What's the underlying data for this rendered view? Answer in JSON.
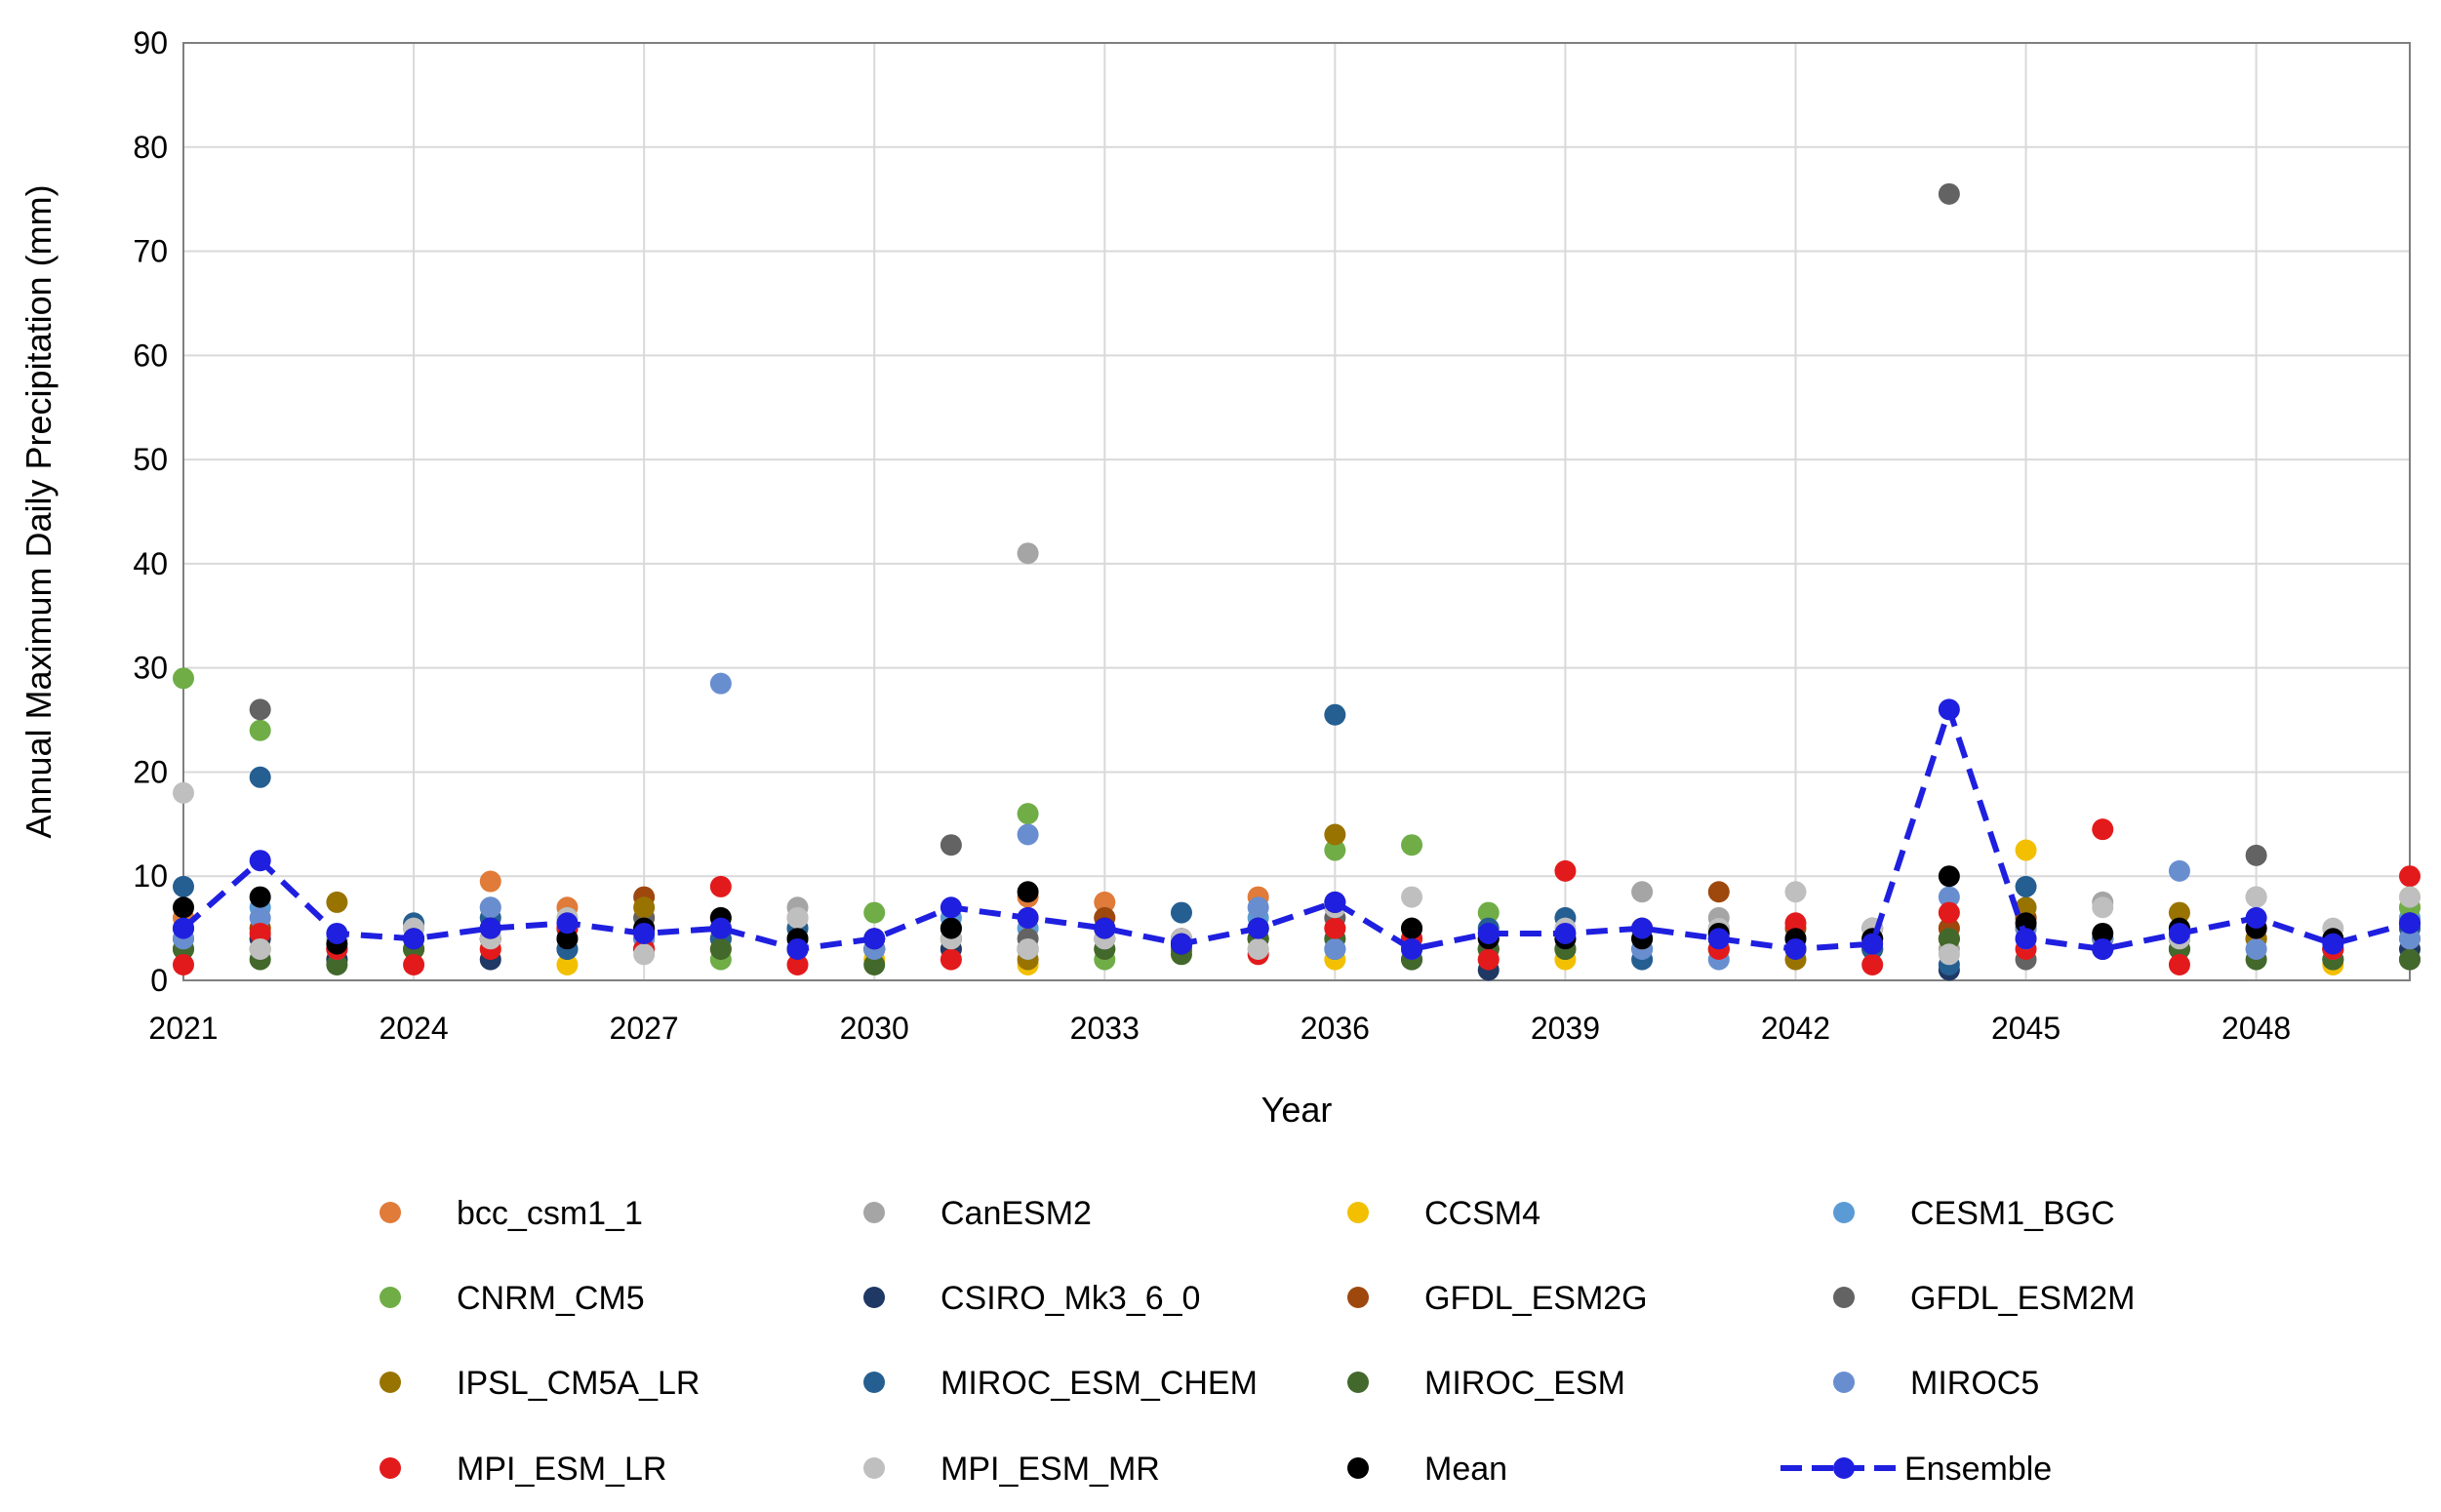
{
  "chart_data": {
    "type": "scatter",
    "title": "",
    "xlabel": "Year",
    "ylabel": "Annual Maximum Daily Precipitation (mm)",
    "xlim": [
      2021,
      2050
    ],
    "ylim": [
      0,
      90
    ],
    "x_ticks": [
      2021,
      2024,
      2027,
      2030,
      2033,
      2036,
      2039,
      2042,
      2045,
      2048
    ],
    "y_ticks": [
      0,
      10,
      20,
      30,
      40,
      50,
      60,
      70,
      80,
      90
    ],
    "grid": true,
    "legend_position": "bottom",
    "years": [
      2021,
      2022,
      2023,
      2024,
      2025,
      2026,
      2027,
      2028,
      2029,
      2030,
      2031,
      2032,
      2033,
      2034,
      2035,
      2036,
      2037,
      2038,
      2039,
      2040,
      2041,
      2042,
      2043,
      2044,
      2045,
      2046,
      2047,
      2048,
      2049,
      2050
    ],
    "series": [
      {
        "name": "bcc_csm1_1",
        "color": "#E07B39",
        "marker": "dot",
        "values": [
          6,
          4,
          3,
          3,
          9.5,
          7,
          6,
          3,
          6,
          3,
          5,
          8,
          7.5,
          3,
          8,
          5,
          4,
          3,
          4,
          5,
          4,
          3,
          4,
          4,
          5,
          3,
          4,
          5,
          3,
          7
        ]
      },
      {
        "name": "CanESM2",
        "color": "#A5A5A5",
        "marker": "dot",
        "values": [
          4,
          3,
          4,
          3,
          7,
          5,
          3,
          6,
          7,
          3,
          4,
          41,
          5,
          4,
          4,
          6,
          5,
          2,
          4,
          8.5,
          6,
          3,
          5,
          3,
          4,
          7.5,
          3,
          8,
          4,
          6
        ]
      },
      {
        "name": "CCSM4",
        "color": "#F2C000",
        "marker": "dot",
        "values": [
          3,
          5,
          3,
          3,
          3,
          1.5,
          5,
          3,
          3,
          2,
          4,
          1.5,
          5,
          4,
          3,
          2,
          3,
          4,
          2,
          4,
          3,
          3,
          4,
          4,
          12.5,
          4,
          3,
          4,
          1.5,
          8
        ]
      },
      {
        "name": "CESM1_BGC",
        "color": "#5B9BD5",
        "marker": "dot",
        "values": [
          5,
          7,
          3,
          5,
          5,
          5,
          4,
          4,
          3,
          4,
          6,
          5,
          6,
          3,
          6,
          4,
          3,
          3,
          3,
          4,
          3,
          4,
          5,
          4,
          5,
          4,
          4,
          5,
          3,
          6
        ]
      },
      {
        "name": "CNRM_CM5",
        "color": "#70AD47",
        "marker": "dot",
        "values": [
          29,
          24,
          2,
          3,
          4,
          6,
          3,
          2,
          5,
          6.5,
          3,
          16,
          2,
          3,
          5,
          12.5,
          13,
          6.5,
          3,
          5,
          4,
          3,
          4,
          5,
          6,
          3,
          5,
          3,
          3,
          7
        ]
      },
      {
        "name": "CSIRO_Mk3_6_0",
        "color": "#1F3864",
        "marker": "dot",
        "values": [
          3,
          4,
          2,
          4,
          2,
          3,
          3,
          5,
          3,
          3,
          3,
          3,
          4,
          3,
          4,
          3,
          2,
          1,
          3,
          3,
          4,
          3,
          3,
          1,
          4,
          3,
          3,
          4,
          2,
          3
        ]
      },
      {
        "name": "GFDL_ESM2G",
        "color": "#9E480E",
        "marker": "dot",
        "values": [
          4,
          5,
          3,
          4,
          4,
          5,
          8,
          4,
          4,
          3,
          4,
          3,
          6,
          3,
          4,
          7,
          3,
          4,
          4,
          5,
          8.5,
          5,
          3,
          5,
          6,
          4,
          4,
          4,
          3,
          4
        ]
      },
      {
        "name": "GFDL_ESM2M",
        "color": "#636363",
        "marker": "dot",
        "values": [
          5,
          26,
          3,
          4,
          5,
          4,
          6,
          4,
          3,
          3,
          13,
          4,
          5,
          4,
          5,
          6,
          5,
          3,
          3,
          4,
          4,
          3,
          5,
          75.5,
          2,
          3,
          4,
          12,
          3,
          2
        ]
      },
      {
        "name": "IPSL_CM5A_LR",
        "color": "#997300",
        "marker": "dot",
        "values": [
          5,
          3,
          7.5,
          3,
          4,
          4,
          7,
          5,
          4,
          3,
          4,
          2,
          3,
          3,
          4,
          14,
          3,
          3,
          3,
          5,
          4,
          2,
          3,
          4,
          7,
          4,
          6.5,
          4,
          3,
          5
        ]
      },
      {
        "name": "MIROC_ESM_CHEM",
        "color": "#255E91",
        "marker": "dot",
        "values": [
          9,
          19.5,
          4,
          5.5,
          6,
          3,
          5,
          4,
          5,
          3,
          5,
          3,
          5,
          6.5,
          5,
          25.5,
          4,
          5,
          6,
          2,
          5,
          4,
          3,
          1.5,
          9,
          3,
          4,
          5,
          3,
          5
        ]
      },
      {
        "name": "MIROC_ESM",
        "color": "#43682B",
        "marker": "dot",
        "values": [
          3,
          2,
          1.5,
          3,
          4,
          5,
          4,
          3,
          4,
          1.5,
          4,
          3,
          3,
          2.5,
          4,
          4,
          2,
          3,
          3,
          4,
          3,
          3,
          4,
          4,
          5,
          4,
          3,
          2,
          2,
          2
        ]
      },
      {
        "name": "MIROC5",
        "color": "#698ED0",
        "marker": "dot",
        "values": [
          4,
          6,
          3,
          4,
          7,
          4,
          4,
          28.5,
          4,
          3,
          5,
          14,
          4,
          4,
          7,
          3,
          3,
          4,
          4,
          3,
          2,
          4,
          4,
          8,
          5,
          4,
          10.5,
          3,
          3,
          4
        ]
      },
      {
        "name": "MPI_ESM_LR",
        "color": "#E31A1C",
        "marker": "dot",
        "values": [
          1.5,
          4.5,
          3,
          1.5,
          3,
          5,
          3,
          9,
          1.5,
          4,
          2,
          6,
          5,
          4,
          2.5,
          5,
          4,
          2,
          10.5,
          4,
          3,
          5.5,
          1.5,
          6.5,
          3,
          14.5,
          1.5,
          5,
          3,
          10
        ]
      },
      {
        "name": "MPI_ESM_MR",
        "color": "#BFBFBF",
        "marker": "dot",
        "values": [
          18,
          3,
          4,
          5,
          4,
          6,
          2.5,
          6,
          6,
          4,
          4,
          3,
          4,
          4,
          3,
          7,
          8,
          4,
          5,
          4,
          5,
          8.5,
          5,
          2.5,
          4,
          7,
          4,
          8,
          5,
          8
        ]
      },
      {
        "name": "Mean",
        "color": "#000000",
        "marker": "dot",
        "values": [
          7,
          8,
          3.5,
          4,
          5,
          4,
          5,
          6,
          4,
          4,
          5,
          8.5,
          5,
          3.5,
          5,
          7.5,
          5,
          4,
          4,
          4,
          4.5,
          4,
          4,
          10,
          5.5,
          4.5,
          5,
          5,
          4,
          5.5
        ]
      },
      {
        "name": "Ensemble",
        "color": "#1F1FE0",
        "marker": "line-dot",
        "values": [
          5,
          11.5,
          4.5,
          4,
          5,
          5.5,
          4.5,
          5,
          3,
          4,
          7,
          6,
          5,
          3.5,
          5,
          7.5,
          3,
          4.5,
          4.5,
          5,
          4,
          3,
          3.5,
          26,
          4,
          3,
          4.5,
          6,
          3.5,
          5.5
        ]
      }
    ]
  }
}
